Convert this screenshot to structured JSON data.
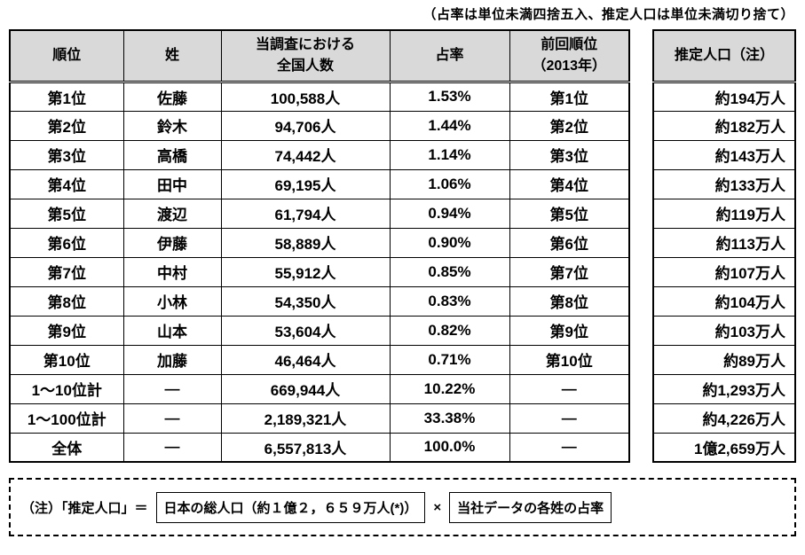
{
  "top_note": "（占率は単位未満四捨五入、推定人口は単位未満切り捨て）",
  "main_table": {
    "headers": {
      "rank": "順位",
      "name": "姓",
      "count_line1": "当調査における",
      "count_line2": "全国人数",
      "share": "占率",
      "prev_line1": "前回順位",
      "prev_line2": "（2013年）"
    },
    "rows": [
      {
        "rank": "第1位",
        "name": "佐藤",
        "count": "100,588人",
        "share": "1.53%",
        "prev": "第1位"
      },
      {
        "rank": "第2位",
        "name": "鈴木",
        "count": "94,706人",
        "share": "1.44%",
        "prev": "第2位"
      },
      {
        "rank": "第3位",
        "name": "高橋",
        "count": "74,442人",
        "share": "1.14%",
        "prev": "第3位"
      },
      {
        "rank": "第4位",
        "name": "田中",
        "count": "69,195人",
        "share": "1.06%",
        "prev": "第4位"
      },
      {
        "rank": "第5位",
        "name": "渡辺",
        "count": "61,794人",
        "share": "0.94%",
        "prev": "第5位"
      },
      {
        "rank": "第6位",
        "name": "伊藤",
        "count": "58,889人",
        "share": "0.90%",
        "prev": "第6位"
      },
      {
        "rank": "第7位",
        "name": "中村",
        "count": "55,912人",
        "share": "0.85%",
        "prev": "第7位"
      },
      {
        "rank": "第8位",
        "name": "小林",
        "count": "54,350人",
        "share": "0.83%",
        "prev": "第8位"
      },
      {
        "rank": "第9位",
        "name": "山本",
        "count": "53,604人",
        "share": "0.82%",
        "prev": "第9位"
      },
      {
        "rank": "第10位",
        "name": "加藤",
        "count": "46,464人",
        "share": "0.71%",
        "prev": "第10位"
      },
      {
        "rank": "1～10位計",
        "name": "―",
        "count": "669,944人",
        "share": "10.22%",
        "prev": "―"
      },
      {
        "rank": "1～100位計",
        "name": "―",
        "count": "2,189,321人",
        "share": "33.38%",
        "prev": "―"
      },
      {
        "rank": "全体",
        "name": "―",
        "count": "6,557,813人",
        "share": "100.0%",
        "prev": "―"
      }
    ]
  },
  "right_table": {
    "header": "推定人口（注）",
    "rows": [
      "約194万人",
      "約182万人",
      "約143万人",
      "約133万人",
      "約119万人",
      "約113万人",
      "約107万人",
      "約104万人",
      "約103万人",
      "約89万人",
      "約1,293万人",
      "約4,226万人",
      "1億2,659万人"
    ]
  },
  "footnote": {
    "prefix": "（注）「推定人口」＝",
    "box1": "日本の総人口（約１億２，６５９万人(*)）",
    "times": "×",
    "box2": "当社データの各姓の占率"
  }
}
